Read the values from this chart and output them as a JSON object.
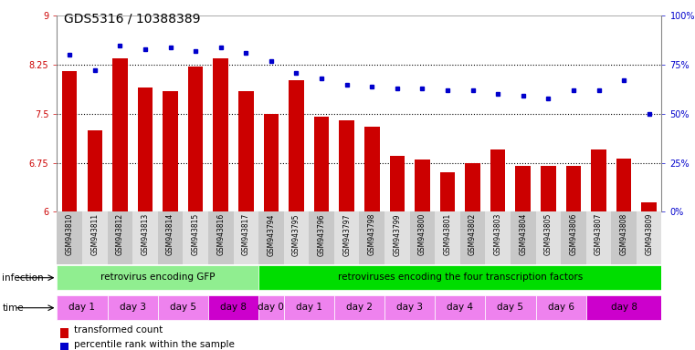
{
  "title": "GDS5316 / 10388389",
  "samples": [
    "GSM943810",
    "GSM943811",
    "GSM943812",
    "GSM943813",
    "GSM943814",
    "GSM943815",
    "GSM943816",
    "GSM943817",
    "GSM943794",
    "GSM943795",
    "GSM943796",
    "GSM943797",
    "GSM943798",
    "GSM943799",
    "GSM943800",
    "GSM943801",
    "GSM943802",
    "GSM943803",
    "GSM943804",
    "GSM943805",
    "GSM943806",
    "GSM943807",
    "GSM943808",
    "GSM943809"
  ],
  "bar_values": [
    8.15,
    7.25,
    8.35,
    7.9,
    7.85,
    8.22,
    8.35,
    7.85,
    7.5,
    8.02,
    7.45,
    7.4,
    7.3,
    6.85,
    6.8,
    6.6,
    6.75,
    6.95,
    6.7,
    6.7,
    6.7,
    6.95,
    6.82,
    6.15
  ],
  "dot_values": [
    80,
    72,
    85,
    83,
    84,
    82,
    84,
    81,
    77,
    71,
    68,
    65,
    64,
    63,
    63,
    62,
    62,
    60,
    59,
    58,
    62,
    62,
    67,
    50
  ],
  "ylim": [
    6,
    9
  ],
  "yticks": [
    6,
    6.75,
    7.5,
    8.25,
    9
  ],
  "ytick_labels": [
    "6",
    "6.75",
    "7.5",
    "8.25",
    "9"
  ],
  "y2lim": [
    0,
    100
  ],
  "y2ticks": [
    0,
    25,
    50,
    75,
    100
  ],
  "y2tick_labels": [
    "0%",
    "25%",
    "50%",
    "75%",
    "100%"
  ],
  "bar_color": "#cc0000",
  "dot_color": "#0000cc",
  "bar_base": 6,
  "infection_groups": [
    {
      "label": "retrovirus encoding GFP",
      "start": 0,
      "end": 8,
      "color": "#90ee90"
    },
    {
      "label": "retroviruses encoding the four transcription factors",
      "start": 8,
      "end": 24,
      "color": "#00dd00"
    }
  ],
  "time_groups": [
    {
      "label": "day 1",
      "start": 0,
      "end": 2,
      "color": "#ee82ee"
    },
    {
      "label": "day 3",
      "start": 2,
      "end": 4,
      "color": "#ee82ee"
    },
    {
      "label": "day 5",
      "start": 4,
      "end": 6,
      "color": "#ee82ee"
    },
    {
      "label": "day 8",
      "start": 6,
      "end": 8,
      "color": "#cc00cc"
    },
    {
      "label": "day 0",
      "start": 8,
      "end": 9,
      "color": "#ee82ee"
    },
    {
      "label": "day 1",
      "start": 9,
      "end": 11,
      "color": "#ee82ee"
    },
    {
      "label": "day 2",
      "start": 11,
      "end": 13,
      "color": "#ee82ee"
    },
    {
      "label": "day 3",
      "start": 13,
      "end": 15,
      "color": "#ee82ee"
    },
    {
      "label": "day 4",
      "start": 15,
      "end": 17,
      "color": "#ee82ee"
    },
    {
      "label": "day 5",
      "start": 17,
      "end": 19,
      "color": "#ee82ee"
    },
    {
      "label": "day 6",
      "start": 19,
      "end": 21,
      "color": "#ee82ee"
    },
    {
      "label": "day 8",
      "start": 21,
      "end": 24,
      "color": "#cc00cc"
    }
  ],
  "legend_items": [
    {
      "label": "transformed count",
      "color": "#cc0000"
    },
    {
      "label": "percentile rank within the sample",
      "color": "#0000cc"
    }
  ],
  "hline_color": "#000000",
  "hline_lw": 0.8,
  "bg_color": "#ffffff",
  "tick_label_color_left": "#cc0000",
  "tick_label_color_right": "#0000cc",
  "title_fontsize": 10,
  "axis_fontsize": 7,
  "sample_fontsize": 5.5,
  "row_fontsize": 7.5
}
